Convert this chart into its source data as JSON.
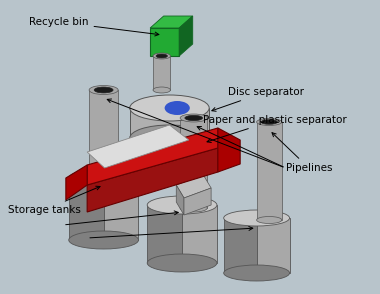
{
  "bg_color": "#b8c4cb",
  "labels": {
    "recycle_bin": "Recycle bin",
    "disc_separator": "Disc separator",
    "paper_plastic": "Paper and plastic separator",
    "pipelines": "Pipelines",
    "storage_tanks": "Storage tanks"
  },
  "font_size": 7.5,
  "colors": {
    "gray_light": "#d0d0d0",
    "gray_mid": "#a8a8a8",
    "gray_dark": "#808080",
    "gray_very_dark": "#585858",
    "gray_top": "#c8c8c8",
    "pipe_dark": "#1a1a1a",
    "red_bright": "#cc1111",
    "red_dark": "#991111",
    "red_side": "#aa0000",
    "green_bright": "#33bb44",
    "green_mid": "#22aa33",
    "green_dark": "#116622",
    "white_box": "#e8e8e8",
    "blue_disc": "#3355cc",
    "edge_color": "#555555"
  }
}
